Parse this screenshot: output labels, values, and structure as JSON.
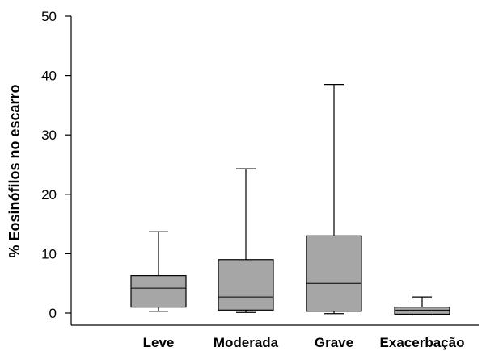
{
  "chart_data": {
    "type": "boxplot",
    "title": "",
    "xlabel": "",
    "ylabel": "% Eosinófilos no escarro",
    "ylim": [
      0,
      50
    ],
    "yticks": [
      0,
      10,
      20,
      30,
      40,
      50
    ],
    "grid": false,
    "box_color": "#a6a6a6",
    "categories": [
      "Leve",
      "Moderada",
      "Grave",
      "Exacerbação"
    ],
    "boxes": [
      {
        "category": "Leve",
        "min": 0.3,
        "q1": 1.0,
        "median": 4.2,
        "q3": 6.3,
        "max": 13.7
      },
      {
        "category": "Moderada",
        "min": 0.1,
        "q1": 0.5,
        "median": 2.7,
        "q3": 9.0,
        "max": 24.3
      },
      {
        "category": "Grave",
        "min": -0.1,
        "q1": 0.3,
        "median": 5.0,
        "q3": 13.0,
        "max": 38.5
      },
      {
        "category": "Exacerbação",
        "min": -0.3,
        "q1": -0.2,
        "median": 0.5,
        "q3": 1.0,
        "max": 2.7
      }
    ]
  }
}
